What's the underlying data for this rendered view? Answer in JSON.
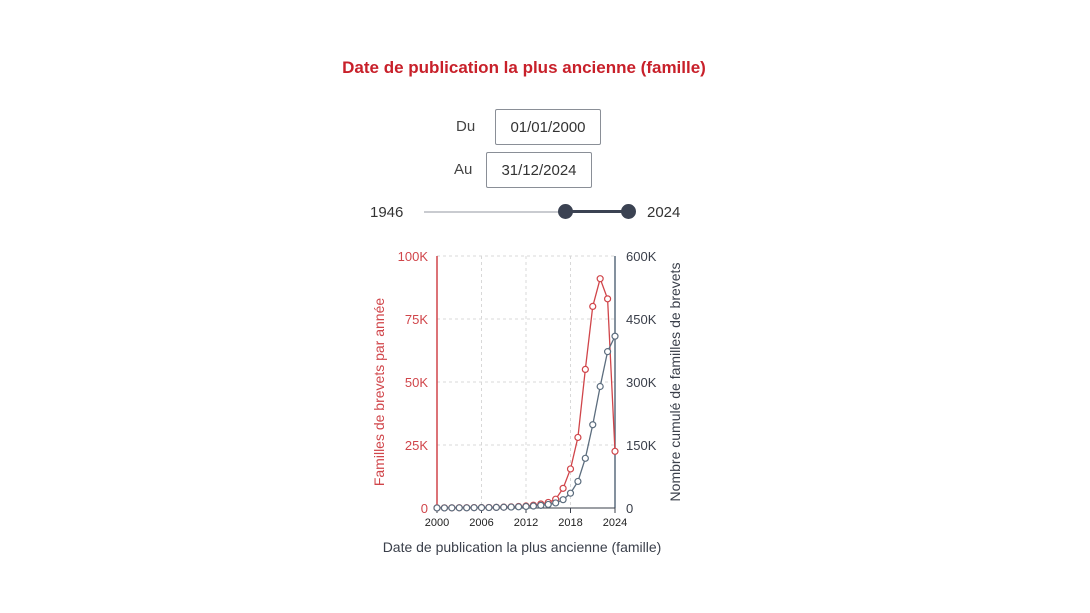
{
  "title": "Date de publication la plus ancienne (famille)",
  "filter": {
    "from_label": "Du",
    "from_value": "01/01/2000",
    "to_label": "Au",
    "to_value": "31/12/2024"
  },
  "slider": {
    "min_label": "1946",
    "max_label": "2024",
    "min": 1946,
    "max": 2024,
    "value_start": 2000,
    "value_end": 2024
  },
  "colors": {
    "annual": "#d0454a",
    "cumulative": "#5c6d7e",
    "title": "#c8202a"
  },
  "chart_data": {
    "type": "line",
    "title": "",
    "xlabel": "Date de publication la plus ancienne (famille)",
    "ylabel_left": "Familles de brevets par année",
    "ylabel_right": "Nombre cumulé de familles de brevets",
    "xlim": [
      2000,
      2024
    ],
    "ylim_left": [
      0,
      100000
    ],
    "ylim_right": [
      0,
      600000
    ],
    "x_ticks": [
      "2000",
      "2006",
      "2012",
      "2018",
      "2024"
    ],
    "y_ticks_left": [
      "0",
      "25K",
      "50K",
      "75K",
      "100K"
    ],
    "y_ticks_right": [
      "0",
      "150K",
      "300K",
      "450K",
      "600K"
    ],
    "grid": true,
    "x": [
      2000,
      2001,
      2002,
      2003,
      2004,
      2005,
      2006,
      2007,
      2008,
      2009,
      2010,
      2011,
      2012,
      2013,
      2014,
      2015,
      2016,
      2017,
      2018,
      2019,
      2020,
      2021,
      2022,
      2023,
      2024
    ],
    "series": [
      {
        "axis": "left",
        "values": [
          50,
          60,
          80,
          100,
          120,
          150,
          180,
          220,
          280,
          350,
          450,
          600,
          800,
          1100,
          1600,
          2200,
          3500,
          7800,
          15500,
          28000,
          55000,
          80000,
          91000,
          83000,
          22500
        ]
      },
      {
        "axis": "right",
        "values": [
          100,
          200,
          300,
          400,
          500,
          700,
          900,
          1100,
          1400,
          1800,
          2200,
          2800,
          3600,
          4700,
          6300,
          8500,
          12000,
          19800,
          35300,
          63300,
          118300,
          198300,
          289300,
          372300,
          409000
        ]
      }
    ]
  }
}
